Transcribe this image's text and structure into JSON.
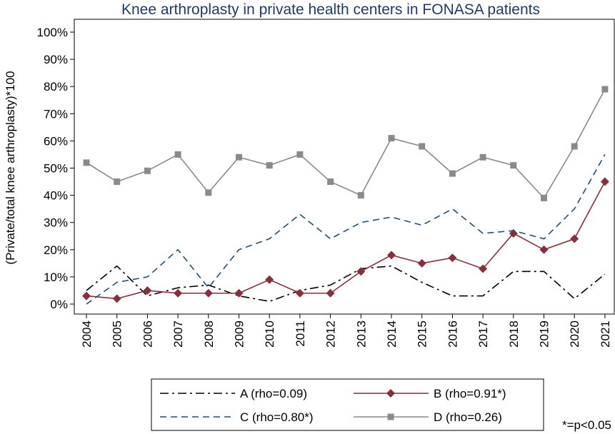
{
  "chart_data": {
    "type": "line",
    "title": "Knee arthroplasty in private health centers in FONASA patients",
    "xlabel": "",
    "ylabel": "(Private/total knee arthroplasty)*100",
    "x": [
      "2004",
      "2005",
      "2006",
      "2007",
      "2008",
      "2009",
      "2010",
      "2011",
      "2012",
      "2013",
      "2014",
      "2015",
      "2016",
      "2017",
      "2018",
      "2019",
      "2020",
      "2021"
    ],
    "ylim": [
      0,
      100
    ],
    "yticks": [
      "0%",
      "10%",
      "20%",
      "30%",
      "40%",
      "50%",
      "60%",
      "70%",
      "80%",
      "90%",
      "100%"
    ],
    "series": [
      {
        "name": "A (rho=0.09)",
        "color": "#000000",
        "dash": "dashdot",
        "marker": "none",
        "values": [
          5,
          14,
          3,
          6,
          7,
          3,
          1,
          5,
          7,
          13,
          14,
          8,
          3,
          3,
          12,
          12,
          2,
          11
        ]
      },
      {
        "name": "B (rho=0.91*)",
        "color": "#8b2e3b",
        "dash": "solid",
        "marker": "diamond",
        "values": [
          3,
          2,
          5,
          4,
          4,
          4,
          9,
          4,
          4,
          12,
          18,
          15,
          17,
          13,
          26,
          20,
          24,
          45
        ]
      },
      {
        "name": "C (rho=0.80*)",
        "color": "#1f4e79",
        "dash": "dashed",
        "marker": "none",
        "values": [
          0,
          8,
          10,
          20,
          6,
          20,
          24,
          33,
          24,
          30,
          32,
          29,
          35,
          26,
          27,
          24,
          35,
          55
        ]
      },
      {
        "name": "D (rho=0.26)",
        "color": "#8a8a8a",
        "dash": "solid",
        "marker": "square",
        "values": [
          52,
          45,
          49,
          55,
          41,
          54,
          51,
          55,
          45,
          40,
          61,
          58,
          48,
          54,
          51,
          39,
          58,
          79
        ]
      }
    ],
    "grid": false,
    "legend_position": "bottom",
    "note": "*=p<0.05"
  }
}
